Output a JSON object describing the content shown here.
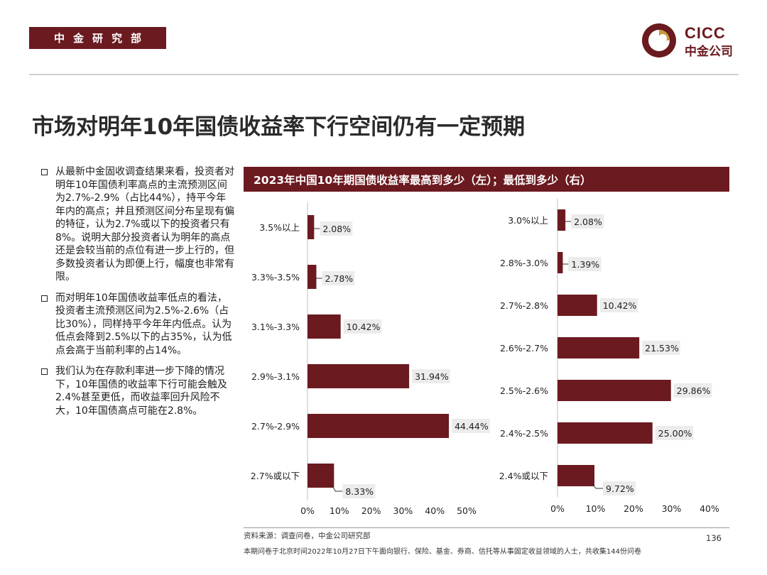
{
  "header": {
    "department": "中金研究部",
    "logo_en": "CICC",
    "logo_cn": "中金公司"
  },
  "title": "市场对明年10年国债收益率下行空间仍有一定预期",
  "bullets": [
    "从最新中金固收调查结果来看，投资者对明年10年国债利率高点的主流预测区间为2.7%-2.9%（占比44%），持平今年年内的高点；并且预测区间分布呈现有偏的特征，认为2.7%或以下的投资者只有8%。说明大部分投资者认为明年的高点还是会较当前的点位有进一步上行的，但多数投资者认为即便上行，幅度也非常有限。",
    "而对明年10年国债收益率低点的看法，投资者主流预测区间为2.5%-2.6%（占比30%），同样持平今年年内低点。认为低点会降到2.5%以下的占35%，认为低点会高于当前利率的占14%。",
    "我们认为在存款利率进一步下降的情况下，10年国债的收益率下行可能会触及2.4%甚至更低，而收益率回升风险不大，10年国债高点可能在2.8%。"
  ],
  "chart_header": "2023年中国10年期国债收益率最高到多少（左）；最低到多少（右）",
  "chart_data": [
    {
      "type": "bar",
      "orientation": "horizontal",
      "title": "最高到多少",
      "categories": [
        "3.5%以上",
        "3.3%-3.5%",
        "3.1%-3.3%",
        "2.9%-3.1%",
        "2.7%-2.9%",
        "2.7%或以下"
      ],
      "values": [
        2.08,
        2.78,
        10.42,
        31.94,
        44.44,
        8.33
      ],
      "labels": [
        "2.08%",
        "2.78%",
        "10.42%",
        "31.94%",
        "44.44%",
        "8.33%"
      ],
      "xlim": [
        0,
        50
      ],
      "ticks": [
        "0%",
        "10%",
        "20%",
        "30%",
        "40%",
        "50%"
      ],
      "tick_values": [
        0,
        10,
        20,
        30,
        40,
        50
      ],
      "bar_color": "#6b1a1f"
    },
    {
      "type": "bar",
      "orientation": "horizontal",
      "title": "最低到多少",
      "categories": [
        "3.0%以上",
        "2.8%-3.0%",
        "2.7%-2.8%",
        "2.6%-2.7%",
        "2.5%-2.6%",
        "2.4%-2.5%",
        "2.4%或以下"
      ],
      "values": [
        2.08,
        1.39,
        10.42,
        21.53,
        29.86,
        25.0,
        9.72
      ],
      "labels": [
        "2.08%",
        "1.39%",
        "10.42%",
        "21.53%",
        "29.86%",
        "25.00%",
        "9.72%"
      ],
      "xlim": [
        0,
        40
      ],
      "ticks": [
        "0%",
        "10%",
        "20%",
        "30%",
        "40%"
      ],
      "tick_values": [
        0,
        10,
        20,
        30,
        40
      ],
      "bar_color": "#6b1a1f"
    }
  ],
  "footer": {
    "source": "资料来源：调查问卷，中金公司研究部",
    "page": "136",
    "survey_note": "本期问卷于北京时间2022年10月27日下午面向银行、保险、基金、券商、信托等从事固定收益领域的人士，共收集144份问卷"
  },
  "colors": {
    "accent": "#6b1a1f",
    "label_bg": "#ececec"
  }
}
